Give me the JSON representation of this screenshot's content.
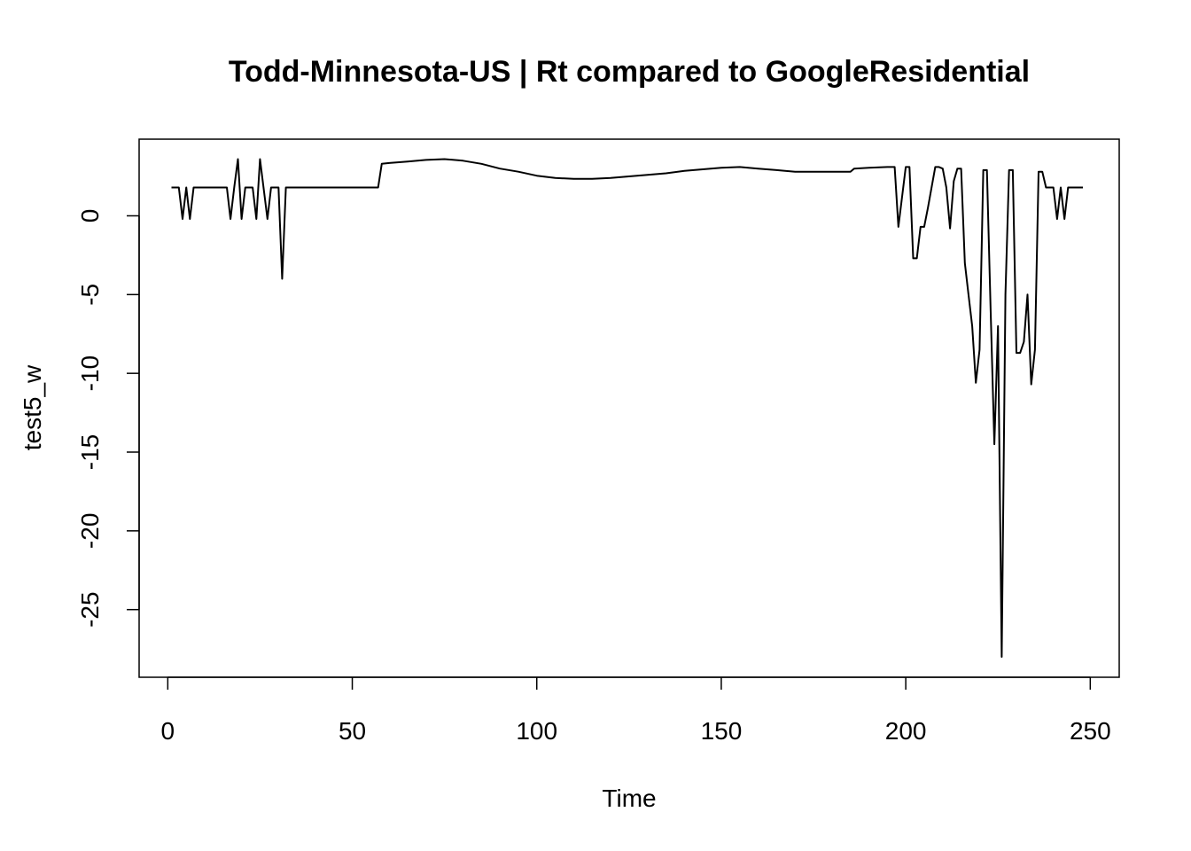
{
  "chart_data": {
    "type": "line",
    "title": "Todd-Minnesota-US | Rt compared to GoogleResidential",
    "xlabel": "Time",
    "ylabel": "test5_w",
    "xlim": [
      1,
      248
    ],
    "ylim": [
      -28,
      3.6
    ],
    "xticks": [
      0,
      50,
      100,
      150,
      200,
      250
    ],
    "yticks": [
      0,
      -5,
      -10,
      -15,
      -20,
      -25
    ],
    "grid": false,
    "line_color": "#000000",
    "series": [
      {
        "x": [
          1,
          3,
          4,
          5,
          6,
          7,
          8,
          16,
          17,
          18,
          19,
          20,
          21,
          23,
          24,
          25,
          27,
          28,
          29,
          30,
          31,
          32,
          57,
          58,
          60,
          65,
          70,
          75,
          80,
          85,
          90,
          95,
          100,
          105,
          110,
          115,
          120,
          125,
          130,
          135,
          140,
          145,
          150,
          155,
          160,
          165,
          170,
          175,
          180,
          185,
          186,
          190,
          195,
          197,
          198,
          200,
          201,
          202,
          203,
          204,
          205,
          206,
          208,
          209,
          210,
          211,
          212,
          213,
          214,
          215,
          216,
          217,
          218,
          219,
          220,
          221,
          222,
          223,
          224,
          225,
          226,
          227,
          228,
          229,
          230,
          231,
          232,
          233,
          234,
          235,
          236,
          237,
          238,
          239,
          240,
          241,
          242,
          243,
          244,
          248
        ],
        "y": [
          1.8,
          1.8,
          -0.2,
          1.8,
          -0.2,
          1.8,
          1.8,
          1.8,
          -0.2,
          1.8,
          3.6,
          -0.2,
          1.8,
          1.8,
          -0.2,
          3.6,
          -0.2,
          1.8,
          1.8,
          1.8,
          -4.0,
          1.8,
          1.8,
          3.3,
          3.35,
          3.45,
          3.55,
          3.6,
          3.5,
          3.3,
          3.0,
          2.8,
          2.55,
          2.4,
          2.35,
          2.35,
          2.4,
          2.5,
          2.6,
          2.7,
          2.85,
          2.95,
          3.05,
          3.1,
          3.0,
          2.9,
          2.8,
          2.8,
          2.8,
          2.8,
          3.0,
          3.05,
          3.1,
          3.1,
          -0.7,
          3.1,
          3.1,
          -2.7,
          -2.7,
          -0.7,
          -0.7,
          0.5,
          3.1,
          3.1,
          3.0,
          1.8,
          -0.8,
          2.2,
          3.0,
          3.0,
          -3.0,
          -5.0,
          -7.0,
          -10.6,
          -8.5,
          2.9,
          2.9,
          -6.0,
          -14.5,
          -7.0,
          -28.0,
          -5.0,
          2.9,
          2.9,
          -8.7,
          -8.7,
          -8.0,
          -5.0,
          -10.7,
          -8.5,
          2.8,
          2.8,
          1.8,
          1.8,
          1.8,
          -0.2,
          1.8,
          -0.2,
          1.8,
          1.8
        ]
      }
    ]
  }
}
